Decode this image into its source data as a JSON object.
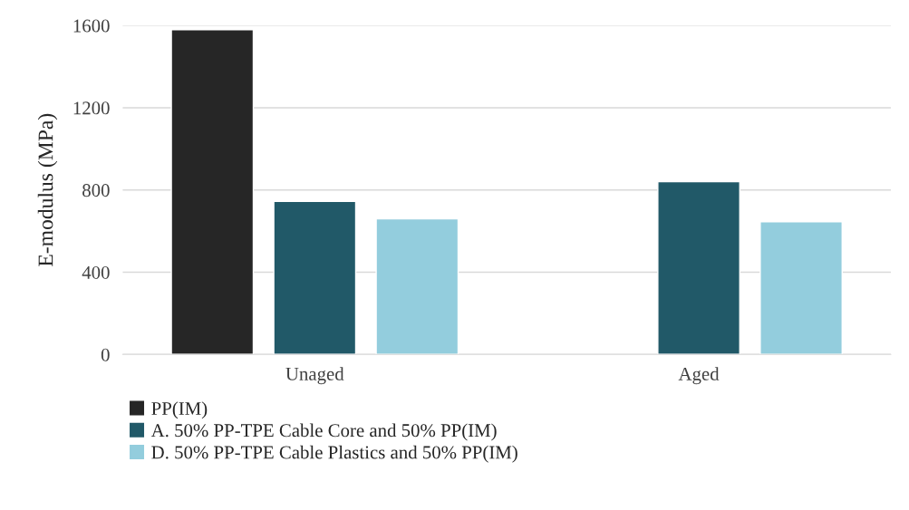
{
  "chart_data": {
    "type": "bar",
    "ylabel": "E-modulus (MPa)",
    "categories": [
      "Unaged",
      "Aged"
    ],
    "series": [
      {
        "name": "PP(IM)",
        "color": "#262626",
        "values": [
          1580,
          null
        ]
      },
      {
        "name": "A. 50% PP-TPE Cable Core and 50% PP(IM)",
        "color": "#215968",
        "values": [
          745,
          840
        ]
      },
      {
        "name": "D. 50% PP-TPE Cable Plastics and 50% PP(IM)",
        "color": "#93cddd",
        "values": [
          660,
          645
        ]
      }
    ],
    "ylim": [
      0,
      1600
    ],
    "yticks": [
      0,
      400,
      800,
      1200,
      1600
    ],
    "grid": "y",
    "legend": "bottom left"
  }
}
